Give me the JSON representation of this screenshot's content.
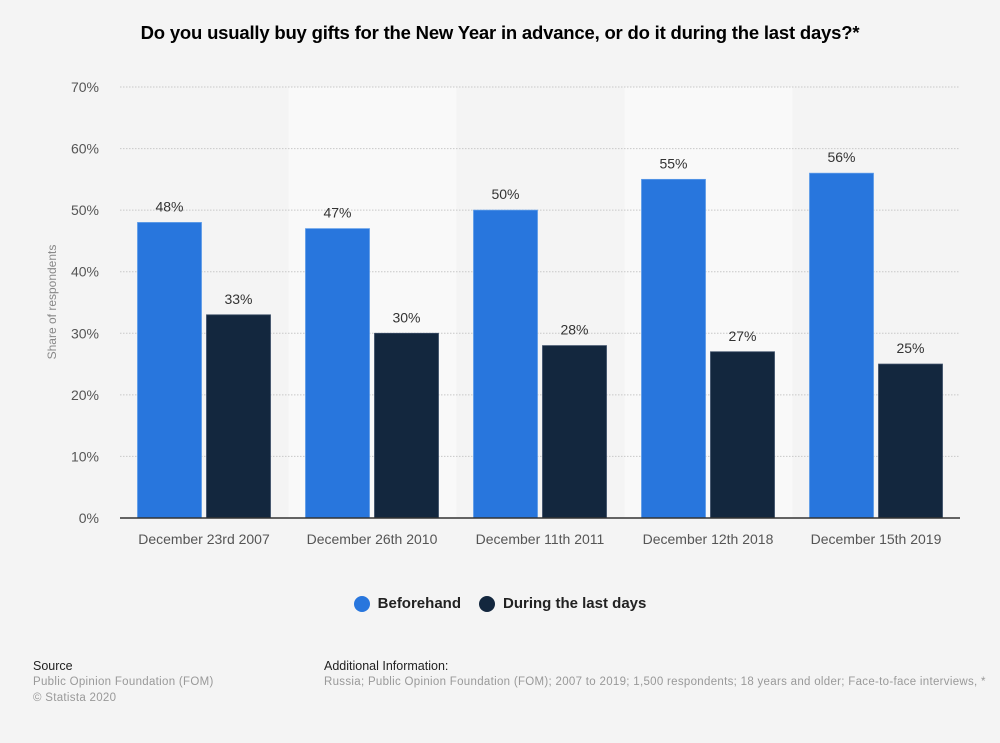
{
  "chart_data": {
    "type": "bar",
    "title": "Do you usually buy gifts for the New Year in advance, or do it during the last days?*",
    "xlabel": "",
    "ylabel": "Share of respondents",
    "ylim": [
      0,
      70
    ],
    "yticks": [
      "0%",
      "10%",
      "20%",
      "30%",
      "40%",
      "50%",
      "60%",
      "70%"
    ],
    "ytick_values": [
      0,
      10,
      20,
      30,
      40,
      50,
      60,
      70
    ],
    "grid": true,
    "legend_position": "bottom-center",
    "categories": [
      "December 23rd 2007",
      "December 26th 2010",
      "December 11th 2011",
      "December 12th 2018",
      "December 15th 2019"
    ],
    "series": [
      {
        "name": "Beforehand",
        "color": "#2876dd",
        "values": [
          48,
          47,
          50,
          55,
          56
        ],
        "labels": [
          "48%",
          "47%",
          "50%",
          "55%",
          "56%"
        ]
      },
      {
        "name": "During the last days",
        "color": "#13273e",
        "values": [
          33,
          30,
          28,
          27,
          25
        ],
        "labels": [
          "33%",
          "30%",
          "28%",
          "27%",
          "25%"
        ]
      }
    ]
  },
  "footer": {
    "source_heading": "Source",
    "source_line1": "Public Opinion Foundation (FOM)",
    "source_line2": "© Statista 2020",
    "additional_heading": "Additional Information:",
    "additional_text": "Russia; Public Opinion Foundation (FOM); 2007 to 2019; 1,500 respondents; 18 years and older; Face-to-face interviews, *"
  }
}
